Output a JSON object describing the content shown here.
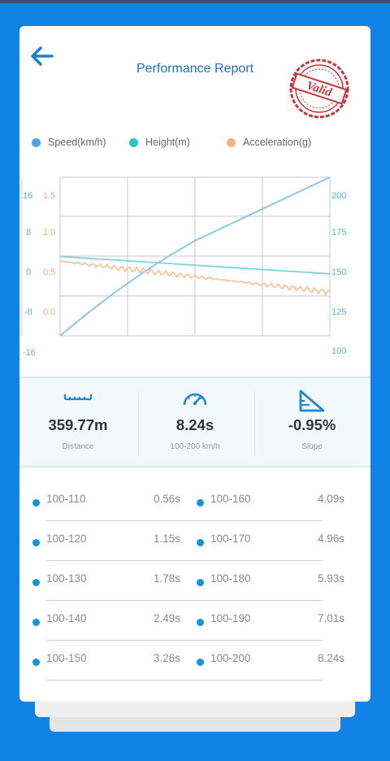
{
  "header": {
    "title": "Performance Report",
    "stamp_text": "Valid"
  },
  "legend": [
    {
      "label": "Speed(km/h)",
      "color": "#4da5e6"
    },
    {
      "label": "Height(m)",
      "color": "#2ec3c6"
    },
    {
      "label": "Acceleration(g)",
      "color": "#f8b07a"
    }
  ],
  "chart_data": {
    "type": "line",
    "axes": {
      "height_ticks": [
        "16",
        "8",
        "0",
        "-8",
        "-16"
      ],
      "accel_ticks": [
        "1.5",
        "1.0",
        "0.5",
        "0.0"
      ],
      "speed_ticks": [
        "200",
        "175",
        "150",
        "125",
        "100"
      ],
      "speed_range": [
        100,
        200
      ],
      "height_range": [
        -16,
        16
      ],
      "accel_range": [
        -0.5,
        1.5
      ]
    },
    "grid": true,
    "series": [
      {
        "name": "Speed(km/h)",
        "color": "#8ec6ea",
        "values_t": [
          0,
          0.1,
          0.2,
          0.3,
          0.4,
          0.5,
          0.6,
          0.7,
          0.8,
          0.9,
          1.0
        ],
        "values": [
          100,
          114,
          127,
          139,
          150,
          160,
          168,
          176,
          184,
          192,
          200
        ]
      },
      {
        "name": "Height(m)",
        "color": "#7ed2dc",
        "values_t": [
          0,
          1
        ],
        "values": [
          0,
          -3.5
        ]
      },
      {
        "name": "Acceleration(g)",
        "color": "#f6c59c",
        "values_t": [
          0,
          1
        ],
        "values": [
          0.44,
          0.05
        ]
      }
    ]
  },
  "stats": [
    {
      "value": "359.77m",
      "label": "Distance",
      "icon": "ruler-icon"
    },
    {
      "value": "8.24s",
      "label": "100-200 km/h",
      "icon": "speedometer-icon"
    },
    {
      "value": "-0.95%",
      "label": "Slope",
      "icon": "slope-icon"
    }
  ],
  "splits": [
    {
      "range": "100-110",
      "time": "0.56s"
    },
    {
      "range": "100-160",
      "time": "4.09s"
    },
    {
      "range": "100-120",
      "time": "1.15s"
    },
    {
      "range": "100-170",
      "time": "4.96s"
    },
    {
      "range": "100-130",
      "time": "1.78s"
    },
    {
      "range": "100-180",
      "time": "5.93s"
    },
    {
      "range": "100-140",
      "time": "2.49s"
    },
    {
      "range": "100-190",
      "time": "7.01s"
    },
    {
      "range": "100-150",
      "time": "3.26s"
    },
    {
      "range": "100-200",
      "time": "8.24s"
    }
  ]
}
